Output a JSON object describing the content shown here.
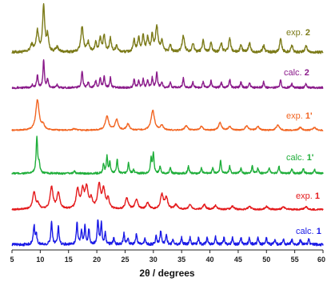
{
  "chart_data": {
    "type": "line",
    "xlabel": "2θ / degrees",
    "ylabel": "",
    "xlim": [
      5,
      60
    ],
    "x_ticks": [
      5,
      10,
      15,
      20,
      25,
      30,
      35,
      40,
      45,
      50,
      55,
      60
    ],
    "grid": false,
    "series": [
      {
        "name": "exp. 2",
        "label_prefix": "exp. ",
        "label_id": "2",
        "color": "#7b7a18",
        "peaks": [
          [
            8.5,
            0.15,
            0.3
          ],
          [
            9.5,
            0.45,
            0.25
          ],
          [
            10.6,
            1.0,
            0.22
          ],
          [
            11.3,
            0.35,
            0.2
          ],
          [
            13.0,
            0.1,
            0.3
          ],
          [
            17.4,
            0.55,
            0.25
          ],
          [
            18.5,
            0.2,
            0.25
          ],
          [
            19.8,
            0.2,
            0.2
          ],
          [
            20.6,
            0.3,
            0.2
          ],
          [
            21.3,
            0.35,
            0.2
          ],
          [
            22.4,
            0.3,
            0.2
          ],
          [
            23.5,
            0.15,
            0.2
          ],
          [
            26.6,
            0.25,
            0.2
          ],
          [
            27.4,
            0.3,
            0.2
          ],
          [
            28.2,
            0.35,
            0.2
          ],
          [
            29.0,
            0.3,
            0.2
          ],
          [
            29.8,
            0.35,
            0.2
          ],
          [
            30.6,
            0.55,
            0.25
          ],
          [
            31.5,
            0.25,
            0.2
          ],
          [
            33.0,
            0.15,
            0.2
          ],
          [
            35.3,
            0.35,
            0.25
          ],
          [
            37.0,
            0.2,
            0.2
          ],
          [
            38.8,
            0.25,
            0.2
          ],
          [
            40.2,
            0.2,
            0.2
          ],
          [
            42.0,
            0.2,
            0.2
          ],
          [
            43.5,
            0.3,
            0.2
          ],
          [
            45.5,
            0.15,
            0.2
          ],
          [
            47.0,
            0.2,
            0.2
          ],
          [
            49.5,
            0.15,
            0.2
          ],
          [
            52.5,
            0.3,
            0.2
          ],
          [
            54.5,
            0.15,
            0.2
          ],
          [
            57.0,
            0.15,
            0.2
          ]
        ],
        "baseline_noise": 0.06
      },
      {
        "name": "calc. 2",
        "label_prefix": "calc. ",
        "label_id": "2",
        "color": "#8a1a8a",
        "peaks": [
          [
            8.6,
            0.1,
            0.15
          ],
          [
            9.5,
            0.45,
            0.15
          ],
          [
            10.6,
            1.0,
            0.14
          ],
          [
            11.3,
            0.3,
            0.14
          ],
          [
            13.0,
            0.1,
            0.15
          ],
          [
            17.4,
            0.6,
            0.15
          ],
          [
            18.5,
            0.2,
            0.15
          ],
          [
            19.8,
            0.25,
            0.14
          ],
          [
            20.6,
            0.35,
            0.14
          ],
          [
            21.3,
            0.4,
            0.14
          ],
          [
            22.4,
            0.35,
            0.14
          ],
          [
            26.6,
            0.3,
            0.14
          ],
          [
            27.4,
            0.25,
            0.14
          ],
          [
            28.2,
            0.3,
            0.14
          ],
          [
            29.0,
            0.25,
            0.14
          ],
          [
            29.8,
            0.35,
            0.14
          ],
          [
            30.6,
            0.55,
            0.15
          ],
          [
            31.5,
            0.2,
            0.14
          ],
          [
            33.0,
            0.2,
            0.14
          ],
          [
            35.3,
            0.35,
            0.14
          ],
          [
            37.0,
            0.2,
            0.14
          ],
          [
            38.8,
            0.2,
            0.14
          ],
          [
            40.2,
            0.25,
            0.14
          ],
          [
            42.0,
            0.2,
            0.14
          ],
          [
            43.5,
            0.3,
            0.14
          ],
          [
            45.5,
            0.2,
            0.14
          ],
          [
            47.0,
            0.2,
            0.14
          ],
          [
            49.5,
            0.2,
            0.14
          ],
          [
            52.5,
            0.3,
            0.14
          ],
          [
            54.5,
            0.15,
            0.14
          ],
          [
            57.0,
            0.15,
            0.14
          ]
        ],
        "baseline_noise": 0.07
      },
      {
        "name": "exp. 1'",
        "label_prefix": "exp. ",
        "label_id": "1'",
        "color": "#f26522",
        "peaks": [
          [
            9.5,
            1.0,
            0.35
          ],
          [
            10.5,
            0.15,
            0.3
          ],
          [
            16.0,
            0.05,
            0.3
          ],
          [
            21.8,
            0.45,
            0.35
          ],
          [
            23.5,
            0.35,
            0.3
          ],
          [
            25.5,
            0.2,
            0.3
          ],
          [
            29.9,
            0.65,
            0.35
          ],
          [
            31.5,
            0.15,
            0.3
          ],
          [
            35.8,
            0.15,
            0.3
          ],
          [
            38.5,
            0.12,
            0.3
          ],
          [
            41.8,
            0.25,
            0.3
          ],
          [
            43.5,
            0.12,
            0.3
          ],
          [
            46.5,
            0.15,
            0.3
          ],
          [
            48.5,
            0.12,
            0.3
          ],
          [
            52.0,
            0.18,
            0.3
          ],
          [
            56.0,
            0.1,
            0.3
          ],
          [
            58.5,
            0.1,
            0.3
          ]
        ],
        "baseline_noise": 0.04
      },
      {
        "name": "calc. 1'",
        "label_prefix": "calc. ",
        "label_id": "1'",
        "color": "#1fae3a",
        "peaks": [
          [
            9.4,
            1.0,
            0.16
          ],
          [
            9.8,
            0.25,
            0.14
          ],
          [
            16.0,
            0.08,
            0.14
          ],
          [
            21.2,
            0.25,
            0.14
          ],
          [
            21.8,
            0.45,
            0.14
          ],
          [
            22.3,
            0.3,
            0.14
          ],
          [
            23.6,
            0.4,
            0.14
          ],
          [
            25.6,
            0.3,
            0.14
          ],
          [
            26.5,
            0.1,
            0.14
          ],
          [
            29.6,
            0.4,
            0.14
          ],
          [
            30.0,
            0.55,
            0.14
          ],
          [
            31.2,
            0.2,
            0.14
          ],
          [
            33.0,
            0.15,
            0.14
          ],
          [
            36.2,
            0.2,
            0.14
          ],
          [
            38.5,
            0.15,
            0.14
          ],
          [
            40.5,
            0.15,
            0.14
          ],
          [
            41.9,
            0.35,
            0.14
          ],
          [
            43.5,
            0.2,
            0.14
          ],
          [
            45.5,
            0.15,
            0.14
          ],
          [
            47.5,
            0.2,
            0.14
          ],
          [
            48.5,
            0.15,
            0.14
          ],
          [
            50.5,
            0.15,
            0.14
          ],
          [
            52.2,
            0.2,
            0.14
          ],
          [
            54.5,
            0.12,
            0.14
          ],
          [
            56.5,
            0.15,
            0.14
          ],
          [
            58.5,
            0.12,
            0.14
          ]
        ],
        "baseline_noise": 0.05
      },
      {
        "name": "exp. 1",
        "label_prefix": "exp. ",
        "label_id": "1",
        "color": "#e41a1c",
        "peaks": [
          [
            8.9,
            0.55,
            0.3
          ],
          [
            9.6,
            0.15,
            0.25
          ],
          [
            12.0,
            0.7,
            0.3
          ],
          [
            13.2,
            0.5,
            0.3
          ],
          [
            16.6,
            0.6,
            0.3
          ],
          [
            17.5,
            0.55,
            0.3
          ],
          [
            18.2,
            0.65,
            0.3
          ],
          [
            19.0,
            0.3,
            0.25
          ],
          [
            20.4,
            0.75,
            0.3
          ],
          [
            21.2,
            0.6,
            0.3
          ],
          [
            22.0,
            0.3,
            0.25
          ],
          [
            25.3,
            0.35,
            0.3
          ],
          [
            27.0,
            0.3,
            0.3
          ],
          [
            29.0,
            0.2,
            0.3
          ],
          [
            31.5,
            0.45,
            0.3
          ],
          [
            32.3,
            0.35,
            0.3
          ],
          [
            34.0,
            0.15,
            0.3
          ],
          [
            36.5,
            0.15,
            0.3
          ],
          [
            39.0,
            0.15,
            0.3
          ],
          [
            41.0,
            0.12,
            0.3
          ],
          [
            44.0,
            0.1,
            0.3
          ],
          [
            47.0,
            0.1,
            0.3
          ],
          [
            50.0,
            0.1,
            0.3
          ],
          [
            53.0,
            0.08,
            0.3
          ],
          [
            57.0,
            0.08,
            0.3
          ]
        ],
        "baseline_noise": 0.05
      },
      {
        "name": "calc. 1",
        "label_prefix": "calc. ",
        "label_id": "1",
        "color": "#1a1ae6",
        "peaks": [
          [
            8.9,
            0.7,
            0.16
          ],
          [
            9.3,
            0.35,
            0.14
          ],
          [
            12.0,
            0.85,
            0.15
          ],
          [
            13.2,
            0.65,
            0.15
          ],
          [
            16.5,
            0.8,
            0.15
          ],
          [
            17.3,
            0.5,
            0.14
          ],
          [
            17.9,
            0.65,
            0.14
          ],
          [
            18.6,
            0.55,
            0.14
          ],
          [
            20.2,
            0.9,
            0.15
          ],
          [
            20.8,
            0.75,
            0.14
          ],
          [
            21.5,
            0.4,
            0.14
          ],
          [
            23.0,
            0.25,
            0.14
          ],
          [
            24.8,
            0.4,
            0.14
          ],
          [
            25.5,
            0.25,
            0.14
          ],
          [
            27.0,
            0.4,
            0.14
          ],
          [
            28.5,
            0.25,
            0.14
          ],
          [
            30.5,
            0.3,
            0.14
          ],
          [
            31.3,
            0.5,
            0.15
          ],
          [
            32.3,
            0.35,
            0.14
          ],
          [
            33.5,
            0.2,
            0.14
          ],
          [
            35.0,
            0.25,
            0.14
          ],
          [
            36.5,
            0.25,
            0.14
          ],
          [
            38.0,
            0.25,
            0.14
          ],
          [
            39.5,
            0.25,
            0.14
          ],
          [
            41.0,
            0.3,
            0.14
          ],
          [
            42.5,
            0.25,
            0.14
          ],
          [
            44.0,
            0.25,
            0.14
          ],
          [
            45.5,
            0.25,
            0.14
          ],
          [
            47.0,
            0.25,
            0.14
          ],
          [
            48.5,
            0.25,
            0.14
          ],
          [
            50.0,
            0.25,
            0.14
          ],
          [
            51.5,
            0.2,
            0.14
          ],
          [
            53.0,
            0.2,
            0.14
          ],
          [
            54.5,
            0.2,
            0.14
          ],
          [
            56.0,
            0.2,
            0.14
          ],
          [
            57.5,
            0.2,
            0.14
          ]
        ],
        "baseline_noise": 0.1
      }
    ]
  }
}
